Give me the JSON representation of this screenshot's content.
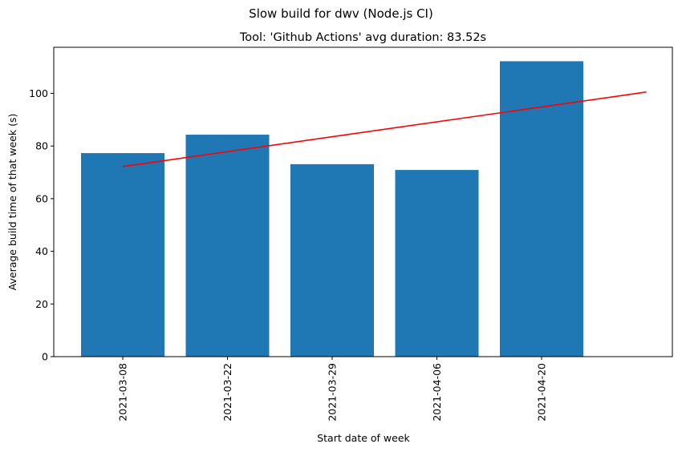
{
  "chart_data": {
    "type": "bar",
    "suptitle": "Slow build for dwv (Node.js CI)",
    "title": "Tool: 'Github Actions' avg duration: 83.52s",
    "xlabel": "Start date of week",
    "ylabel": "Average build time of that week (s)",
    "categories": [
      "2021-03-08",
      "2021-03-22",
      "2021-03-29",
      "2021-04-06",
      "2021-04-20"
    ],
    "values": [
      77.3,
      84.3,
      73.1,
      70.9,
      112.2
    ],
    "ylim": [
      0,
      117.5
    ],
    "yticks": [
      0,
      20,
      40,
      60,
      80,
      100
    ],
    "grid": false,
    "bar_color": "#1f77b4",
    "trend": {
      "color": "#ff0000",
      "start_category_index": 0,
      "end_category_index": 5,
      "start_value": 72.2,
      "end_value": 100.5
    }
  }
}
